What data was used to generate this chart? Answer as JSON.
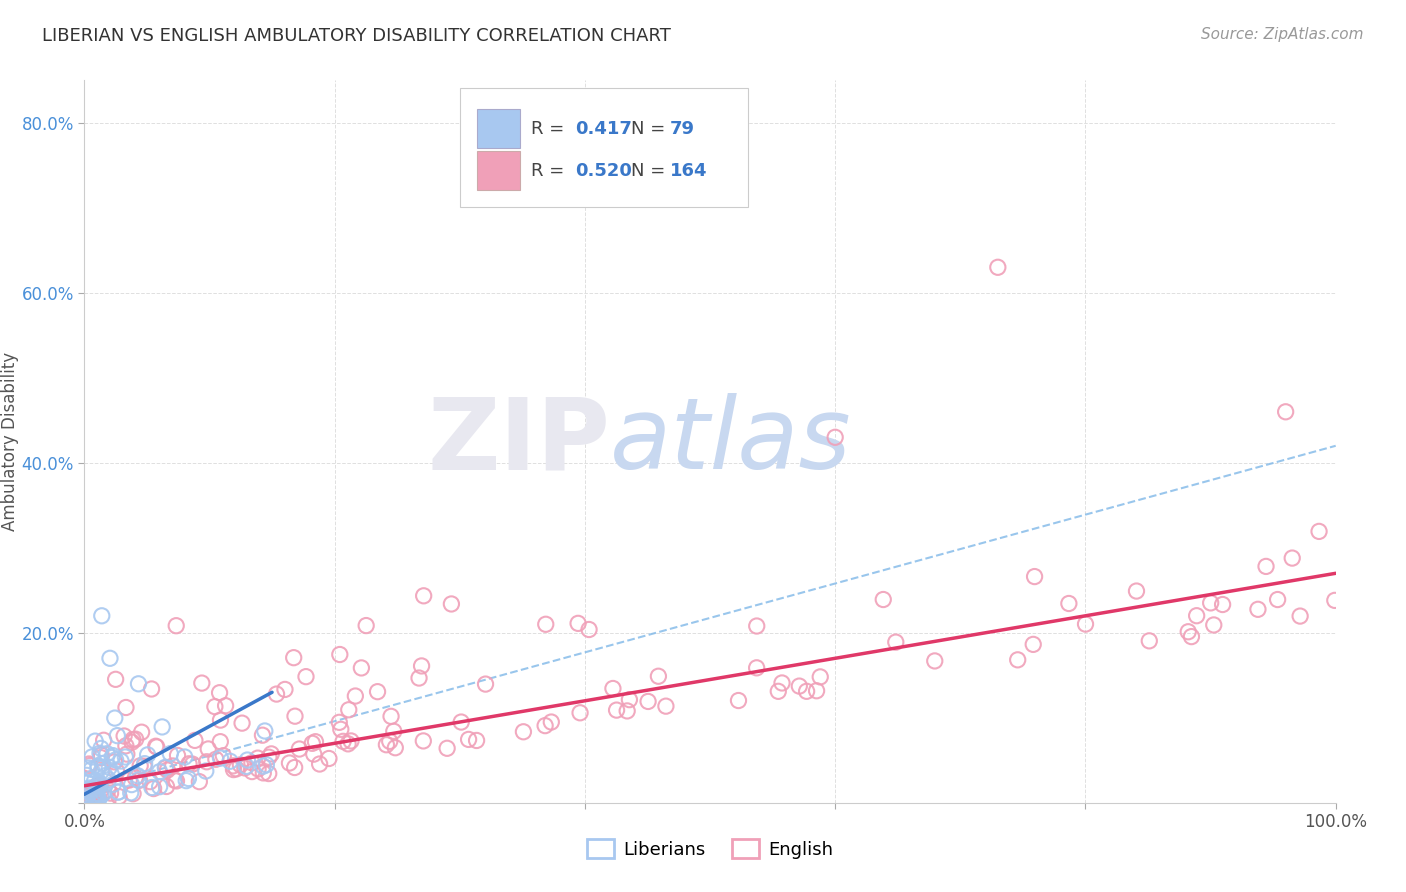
{
  "title": "LIBERIAN VS ENGLISH AMBULATORY DISABILITY CORRELATION CHART",
  "source": "Source: ZipAtlas.com",
  "ylabel": "Ambulatory Disability",
  "xlim": [
    0,
    1.0
  ],
  "ylim": [
    0,
    0.85
  ],
  "x_tick_labels": [
    "0.0%",
    "",
    "",
    "",
    "",
    "100.0%"
  ],
  "y_tick_labels": [
    "",
    "20.0%",
    "40.0%",
    "60.0%",
    "80.0%"
  ],
  "liberian_R": 0.417,
  "liberian_N": 79,
  "english_R": 0.52,
  "english_N": 164,
  "liberian_color": "#a8c8f0",
  "english_color": "#f0a0b8",
  "liberian_line_color": "#3a78c9",
  "english_line_color": "#e03868",
  "dash_line_color": "#80b8e8",
  "background_color": "#ffffff",
  "grid_color": "#e0e0e0",
  "tick_color": "#4a90d9",
  "watermark_color": "#e8e8f0"
}
